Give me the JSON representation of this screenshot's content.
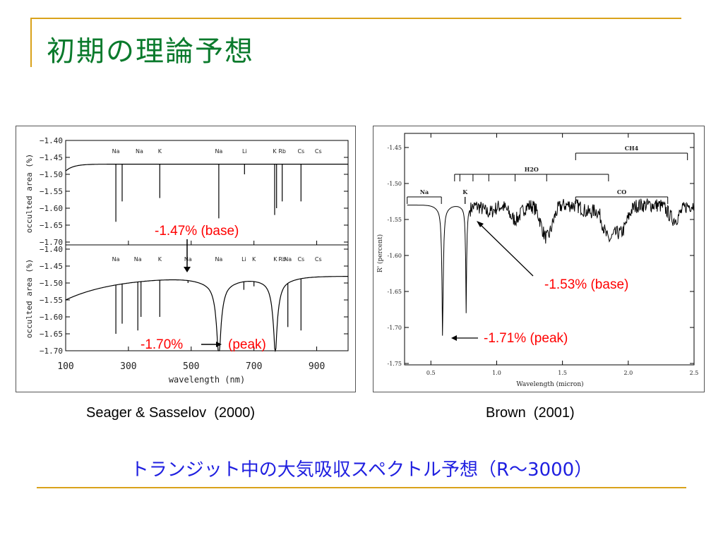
{
  "slide": {
    "title": "初期の理論予想",
    "subtitle": "トランジット中の大気吸収スペクトル予想（R～3000）",
    "accent_color": "#d9a21b",
    "title_color": "#0a7a2c",
    "subtitle_color": "#1f1fe0"
  },
  "left_figure": {
    "caption": "Seager & Sasselov  (2000)",
    "ylabel": "occulted area  (%)",
    "xlabel": "wavelength  (nm)",
    "x_ticks": [
      "100",
      "300",
      "500",
      "700",
      "900"
    ],
    "top_y_ticks": [
      "−1.40",
      "−1.45",
      "−1.50",
      "−1.55",
      "−1.60",
      "−1.65",
      "−1.70"
    ],
    "bottom_y_ticks": [
      "−1.40",
      "−1.45",
      "−1.50",
      "−1.55",
      "−1.60",
      "−1.65",
      "−1.70"
    ],
    "top_lines": [
      "Na",
      "Na",
      "K",
      "Na",
      "Li",
      "K",
      "Rb",
      "Cs",
      "Cs"
    ],
    "bottom_lines": [
      "Na",
      "Na",
      "K",
      "Na",
      "Na",
      "Li",
      "K",
      "K",
      "Rb",
      "Na",
      "Cs",
      "Cs"
    ],
    "annotation_base": "-1.47% (base)",
    "annotation_peak_value": "-1.70%",
    "annotation_peak_label": "(peak)"
  },
  "right_figure": {
    "caption": "Brown  (2001)",
    "ylabel": "R' (percent)",
    "xlabel": "Wavelength (micron)",
    "x_ticks": [
      "0.5",
      "1.0",
      "1.5",
      "2.0",
      "2.5"
    ],
    "y_ticks": [
      "-1.45",
      "-1.50",
      "-1.55",
      "-1.60",
      "-1.65",
      "-1.70",
      "-1.75"
    ],
    "bands": [
      "Na",
      "K",
      "H2O",
      "CH4",
      "CO"
    ],
    "annotation_base": "-1.53% (base)",
    "annotation_peak": "-1.71% (peak)"
  }
}
